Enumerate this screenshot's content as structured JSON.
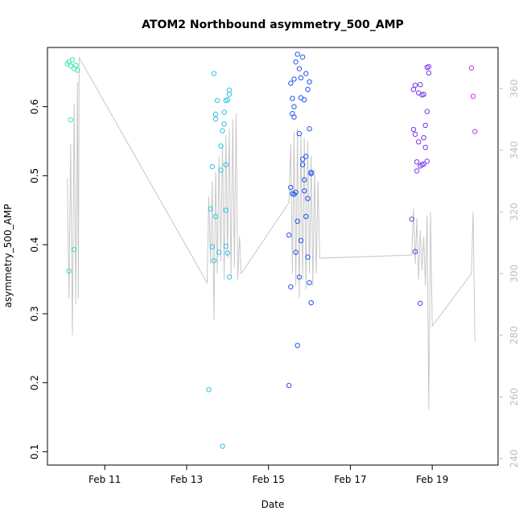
{
  "chart_data": {
    "type": "scatter",
    "title": "ATOM2 Northbound asymmetry_500_AMP",
    "xlabel": "Date",
    "ylabel": "asymmetry_500_AMP",
    "xlim": [
      "2019-02-09 21:00",
      "2019-02-20 08:00"
    ],
    "ylim": [
      0.09,
      0.68
    ],
    "y2lim": [
      240,
      372
    ],
    "grid": false,
    "legend": "none",
    "x_ticks": [
      {
        "date": "2019-02-11",
        "label": "Feb 11"
      },
      {
        "date": "2019-02-13",
        "label": "Feb 13"
      },
      {
        "date": "2019-02-15",
        "label": "Feb 15"
      },
      {
        "date": "2019-02-17",
        "label": "Feb 17"
      },
      {
        "date": "2019-02-19",
        "label": "Feb 19"
      }
    ],
    "y_ticks": [
      0.1,
      0.2,
      0.3,
      0.4,
      0.5,
      0.6
    ],
    "y2_ticks": [
      240,
      260,
      280,
      300,
      320,
      340,
      360
    ],
    "line_series": {
      "axis": "right",
      "color": "#c8c8c8",
      "points": [
        [
          "2019-02-10 02:00",
          331
        ],
        [
          "2019-02-10 03:00",
          292
        ],
        [
          "2019-02-10 04:00",
          342
        ],
        [
          "2019-02-10 05:00",
          280
        ],
        [
          "2019-02-10 06:00",
          355
        ],
        [
          "2019-02-10 07:00",
          290
        ],
        [
          "2019-02-10 08:00",
          362
        ],
        [
          "2019-02-10 08:30",
          292
        ],
        [
          "2019-02-10 09:00",
          370
        ],
        [
          "2019-02-13 12:00",
          297
        ],
        [
          "2019-02-13 13:00",
          325
        ],
        [
          "2019-02-13 14:00",
          303
        ],
        [
          "2019-02-13 15:00",
          330
        ],
        [
          "2019-02-13 16:00",
          285
        ],
        [
          "2019-02-13 17:00",
          333
        ],
        [
          "2019-02-13 18:00",
          300
        ],
        [
          "2019-02-13 19:00",
          338
        ],
        [
          "2019-02-13 20:00",
          304
        ],
        [
          "2019-02-13 21:00",
          342
        ],
        [
          "2019-02-13 22:00",
          298
        ],
        [
          "2019-02-13 23:00",
          345
        ],
        [
          "2019-02-14 00:00",
          305
        ],
        [
          "2019-02-14 01:00",
          347
        ],
        [
          "2019-02-14 02:00",
          299
        ],
        [
          "2019-02-14 03:00",
          350
        ],
        [
          "2019-02-14 04:00",
          302
        ],
        [
          "2019-02-14 05:00",
          352
        ],
        [
          "2019-02-14 06:00",
          298
        ],
        [
          "2019-02-14 07:00",
          312
        ],
        [
          "2019-02-14 08:00",
          300
        ],
        [
          "2019-02-15 12:00",
          323
        ],
        [
          "2019-02-15 13:00",
          342
        ],
        [
          "2019-02-15 14:00",
          300
        ],
        [
          "2019-02-15 15:00",
          346
        ],
        [
          "2019-02-15 16:00",
          296
        ],
        [
          "2019-02-15 17:00",
          347
        ],
        [
          "2019-02-15 18:00",
          292
        ],
        [
          "2019-02-15 19:00",
          345
        ],
        [
          "2019-02-15 20:00",
          298
        ],
        [
          "2019-02-15 21:00",
          344
        ],
        [
          "2019-02-15 22:00",
          295
        ],
        [
          "2019-02-15 23:00",
          343
        ],
        [
          "2019-02-16 00:00",
          300
        ],
        [
          "2019-02-16 01:00",
          338
        ],
        [
          "2019-02-16 02:00",
          296
        ],
        [
          "2019-02-16 03:00",
          334
        ],
        [
          "2019-02-16 04:00",
          300
        ],
        [
          "2019-02-16 05:00",
          330
        ],
        [
          "2019-02-16 06:00",
          305
        ],
        [
          "2019-02-18 12:00",
          306
        ],
        [
          "2019-02-18 13:00",
          321
        ],
        [
          "2019-02-18 14:00",
          303
        ],
        [
          "2019-02-18 15:00",
          318
        ],
        [
          "2019-02-18 16:00",
          298
        ],
        [
          "2019-02-18 17:00",
          314
        ],
        [
          "2019-02-18 18:00",
          301
        ],
        [
          "2019-02-18 19:00",
          312
        ],
        [
          "2019-02-18 20:00",
          296
        ],
        [
          "2019-02-18 21:00",
          319
        ],
        [
          "2019-02-18 22:00",
          256
        ],
        [
          "2019-02-18 23:00",
          320
        ],
        [
          "2019-02-19 00:00",
          283
        ],
        [
          "2019-02-19 23:00",
          300
        ],
        [
          "2019-02-20 00:00",
          320
        ],
        [
          "2019-02-20 01:00",
          278
        ]
      ]
    },
    "series": [
      {
        "color": "#3be8a6",
        "points": [
          [
            "2019-02-10 02:00",
            0.662
          ],
          [
            "2019-02-10 03:00",
            0.665
          ],
          [
            "2019-02-10 04:00",
            0.659
          ],
          [
            "2019-02-10 05:00",
            0.668
          ],
          [
            "2019-02-10 06:00",
            0.655
          ],
          [
            "2019-02-10 07:00",
            0.66
          ],
          [
            "2019-02-10 08:00",
            0.653
          ],
          [
            "2019-02-10 04:00",
            0.581
          ],
          [
            "2019-02-10 03:00",
            0.362
          ],
          [
            "2019-02-10 06:00",
            0.393
          ]
        ]
      },
      {
        "color": "#2ec3e6",
        "points": [
          [
            "2019-02-13 13:00",
            0.19
          ],
          [
            "2019-02-13 14:00",
            0.452
          ],
          [
            "2019-02-13 15:00",
            0.513
          ],
          [
            "2019-02-13 15:00",
            0.397
          ],
          [
            "2019-02-13 16:00",
            0.377
          ],
          [
            "2019-02-13 16:00",
            0.648
          ],
          [
            "2019-02-13 17:00",
            0.589
          ],
          [
            "2019-02-13 17:00",
            0.582
          ],
          [
            "2019-02-13 17:00",
            0.441
          ],
          [
            "2019-02-13 18:00",
            0.609
          ],
          [
            "2019-02-13 19:00",
            0.389
          ],
          [
            "2019-02-13 20:00",
            0.508
          ],
          [
            "2019-02-13 20:00",
            0.543
          ],
          [
            "2019-02-13 21:00",
            0.565
          ],
          [
            "2019-02-13 21:00",
            0.108
          ],
          [
            "2019-02-13 22:00",
            0.575
          ],
          [
            "2019-02-13 22:00",
            0.592
          ],
          [
            "2019-02-13 23:00",
            0.609
          ],
          [
            "2019-02-14 00:00",
            0.61
          ],
          [
            "2019-02-13 23:00",
            0.45
          ],
          [
            "2019-02-13 23:00",
            0.398
          ],
          [
            "2019-02-13 23:00",
            0.516
          ],
          [
            "2019-02-14 00:00",
            0.388
          ],
          [
            "2019-02-14 01:00",
            0.618
          ],
          [
            "2019-02-14 01:00",
            0.624
          ],
          [
            "2019-02-14 01:00",
            0.353
          ]
        ]
      },
      {
        "color": "#2255ee",
        "points": [
          [
            "2019-02-15 12:00",
            0.196
          ],
          [
            "2019-02-15 12:00",
            0.414
          ],
          [
            "2019-02-15 13:00",
            0.339
          ],
          [
            "2019-02-15 13:00",
            0.483
          ],
          [
            "2019-02-15 13:00",
            0.634
          ],
          [
            "2019-02-15 14:00",
            0.612
          ],
          [
            "2019-02-15 14:00",
            0.59
          ],
          [
            "2019-02-15 14:00",
            0.474
          ],
          [
            "2019-02-15 15:00",
            0.585
          ],
          [
            "2019-02-15 15:00",
            0.64
          ],
          [
            "2019-02-15 15:00",
            0.6
          ],
          [
            "2019-02-15 15:00",
            0.473
          ],
          [
            "2019-02-15 16:00",
            0.665
          ],
          [
            "2019-02-15 16:00",
            0.476
          ],
          [
            "2019-02-15 16:00",
            0.389
          ],
          [
            "2019-02-15 17:00",
            0.676
          ],
          [
            "2019-02-15 17:00",
            0.434
          ],
          [
            "2019-02-15 17:00",
            0.254
          ],
          [
            "2019-02-15 18:00",
            0.655
          ],
          [
            "2019-02-15 18:00",
            0.561
          ],
          [
            "2019-02-15 18:00",
            0.353
          ],
          [
            "2019-02-15 19:00",
            0.642
          ],
          [
            "2019-02-15 19:00",
            0.613
          ],
          [
            "2019-02-15 19:00",
            0.406
          ],
          [
            "2019-02-15 20:00",
            0.672
          ],
          [
            "2019-02-15 20:00",
            0.524
          ],
          [
            "2019-02-15 20:00",
            0.516
          ],
          [
            "2019-02-15 21:00",
            0.61
          ],
          [
            "2019-02-15 21:00",
            0.478
          ],
          [
            "2019-02-15 21:00",
            0.494
          ],
          [
            "2019-02-15 22:00",
            0.648
          ],
          [
            "2019-02-15 22:00",
            0.528
          ],
          [
            "2019-02-15 22:00",
            0.441
          ],
          [
            "2019-02-15 23:00",
            0.625
          ],
          [
            "2019-02-15 23:00",
            0.467
          ],
          [
            "2019-02-15 23:00",
            0.382
          ],
          [
            "2019-02-16 00:00",
            0.636
          ],
          [
            "2019-02-16 00:00",
            0.568
          ],
          [
            "2019-02-16 00:00",
            0.345
          ],
          [
            "2019-02-16 01:00",
            0.503
          ],
          [
            "2019-02-16 01:00",
            0.505
          ],
          [
            "2019-02-16 01:00",
            0.316
          ]
        ]
      },
      {
        "color": "#7733ee",
        "points": [
          [
            "2019-02-18 12:00",
            0.437
          ],
          [
            "2019-02-18 13:00",
            0.567
          ],
          [
            "2019-02-18 13:00",
            0.625
          ],
          [
            "2019-02-18 14:00",
            0.631
          ],
          [
            "2019-02-18 14:00",
            0.56
          ],
          [
            "2019-02-18 14:00",
            0.39
          ],
          [
            "2019-02-18 15:00",
            0.507
          ],
          [
            "2019-02-18 15:00",
            0.52
          ],
          [
            "2019-02-18 16:00",
            0.62
          ],
          [
            "2019-02-18 16:00",
            0.549
          ],
          [
            "2019-02-18 17:00",
            0.632
          ],
          [
            "2019-02-18 17:00",
            0.514
          ],
          [
            "2019-02-18 17:00",
            0.315
          ],
          [
            "2019-02-18 18:00",
            0.617
          ],
          [
            "2019-02-18 18:00",
            0.516
          ],
          [
            "2019-02-18 19:00",
            0.618
          ],
          [
            "2019-02-18 19:00",
            0.555
          ],
          [
            "2019-02-18 19:00",
            0.517
          ],
          [
            "2019-02-18 20:00",
            0.573
          ],
          [
            "2019-02-18 20:00",
            0.541
          ],
          [
            "2019-02-18 21:00",
            0.657
          ],
          [
            "2019-02-18 21:00",
            0.593
          ],
          [
            "2019-02-18 21:00",
            0.521
          ],
          [
            "2019-02-18 22:00",
            0.658
          ],
          [
            "2019-02-18 22:00",
            0.649
          ]
        ]
      },
      {
        "color": "#cc33ee",
        "points": [
          [
            "2019-02-19 23:00",
            0.656
          ],
          [
            "2019-02-20 00:00",
            0.615
          ],
          [
            "2019-02-20 01:00",
            0.564
          ]
        ]
      }
    ]
  }
}
